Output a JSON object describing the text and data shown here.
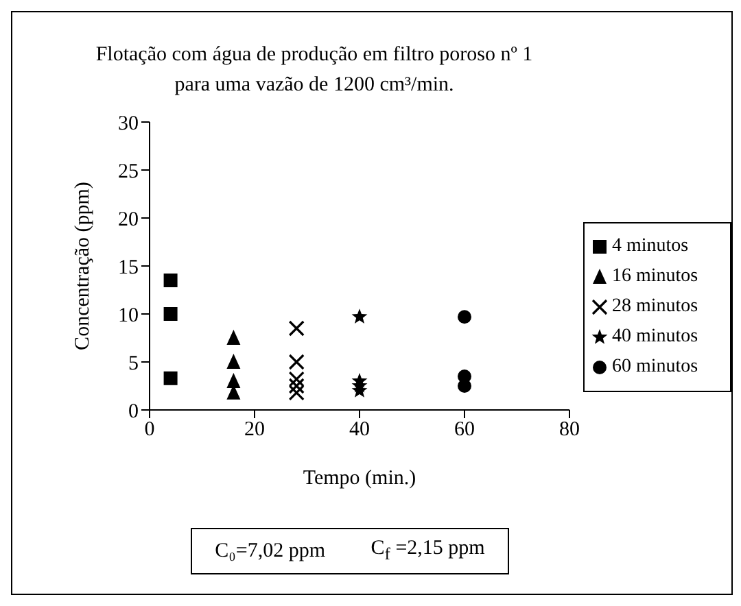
{
  "chart_data": {
    "type": "scatter",
    "title": "Flotação com água de produção em filtro poroso nº 1",
    "subtitle": "para uma vazão de 1200 cm³/min.",
    "xlabel": "Tempo (min.)",
    "ylabel": "Concentração (ppm)",
    "xlim": [
      0,
      80
    ],
    "xticks": [
      0,
      20,
      40,
      60,
      80
    ],
    "ylim": [
      0,
      30
    ],
    "yticks": [
      0,
      5,
      10,
      15,
      20,
      25,
      30
    ],
    "grid": false,
    "legend": "right",
    "series": [
      {
        "name": "4 minutos",
        "color": "#000000",
        "marker": "square",
        "x": [
          4,
          4,
          4
        ],
        "values": [
          13.5,
          10,
          3.3
        ]
      },
      {
        "name": "16 minutos",
        "color": "#000000",
        "marker": "triangle",
        "x": [
          16,
          16,
          16,
          16
        ],
        "values": [
          7.5,
          5,
          3,
          1.8
        ]
      },
      {
        "name": "28 minutos",
        "color": "#000000",
        "marker": "cross",
        "x": [
          28,
          28,
          28,
          28,
          28
        ],
        "values": [
          8.5,
          5,
          3.2,
          2.5,
          1.8
        ]
      },
      {
        "name": "40 minutos",
        "color": "#000000",
        "marker": "star",
        "x": [
          40,
          40,
          40,
          40
        ],
        "values": [
          9.7,
          3,
          2.5,
          2
        ]
      },
      {
        "name": "60 minutos",
        "color": "#000000",
        "marker": "circle",
        "x": [
          60,
          60,
          60
        ],
        "values": [
          9.7,
          3.5,
          2.5
        ]
      }
    ],
    "annotations": [
      "C₀=7,02 ppm",
      "C$_{f}$ =2,15 ppm"
    ]
  }
}
